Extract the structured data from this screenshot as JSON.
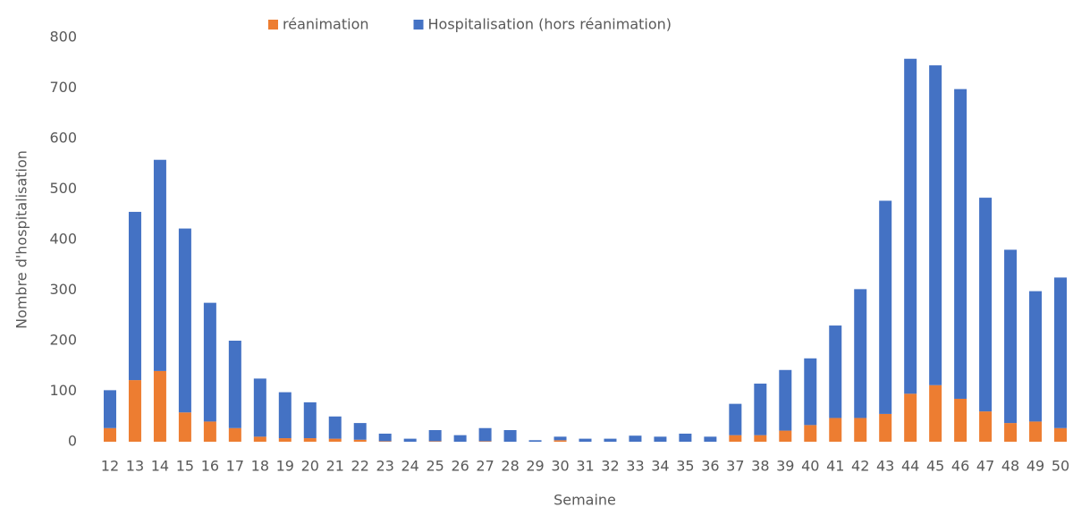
{
  "chart_data": {
    "type": "stacked_bar",
    "x_label": "Semaine",
    "y_label": "Nombre d'hospitalisation",
    "categories": [
      "12",
      "13",
      "14",
      "15",
      "16",
      "17",
      "18",
      "19",
      "20",
      "21",
      "22",
      "23",
      "24",
      "25",
      "26",
      "27",
      "28",
      "29",
      "30",
      "31",
      "32",
      "33",
      "34",
      "35",
      "36",
      "37",
      "38",
      "39",
      "40",
      "41",
      "42",
      "43",
      "44",
      "45",
      "46",
      "47",
      "48",
      "49",
      "50"
    ],
    "series": [
      {
        "name": "réanimation",
        "color": "#ed7d31",
        "values": [
          27,
          122,
          140,
          58,
          40,
          27,
          10,
          7,
          7,
          6,
          4,
          1,
          0,
          1,
          0,
          1,
          0,
          0,
          3,
          0,
          0,
          0,
          0,
          0,
          0,
          13,
          13,
          22,
          33,
          47,
          47,
          55,
          95,
          112,
          85,
          60,
          37,
          40,
          27
        ]
      },
      {
        "name": "Hospitalisation (hors réanimation)",
        "color": "#4472c4",
        "values": [
          75,
          333,
          418,
          364,
          235,
          173,
          115,
          91,
          71,
          44,
          33,
          15,
          6,
          22,
          13,
          26,
          23,
          3,
          7,
          6,
          6,
          12,
          10,
          16,
          10,
          62,
          102,
          120,
          132,
          183,
          255,
          422,
          663,
          633,
          613,
          423,
          343,
          258,
          298
        ]
      }
    ],
    "ylim": [
      0,
      800
    ],
    "yticks": [
      0,
      100,
      200,
      300,
      400,
      500,
      600,
      700,
      800
    ],
    "grid": false,
    "legend": "top"
  }
}
